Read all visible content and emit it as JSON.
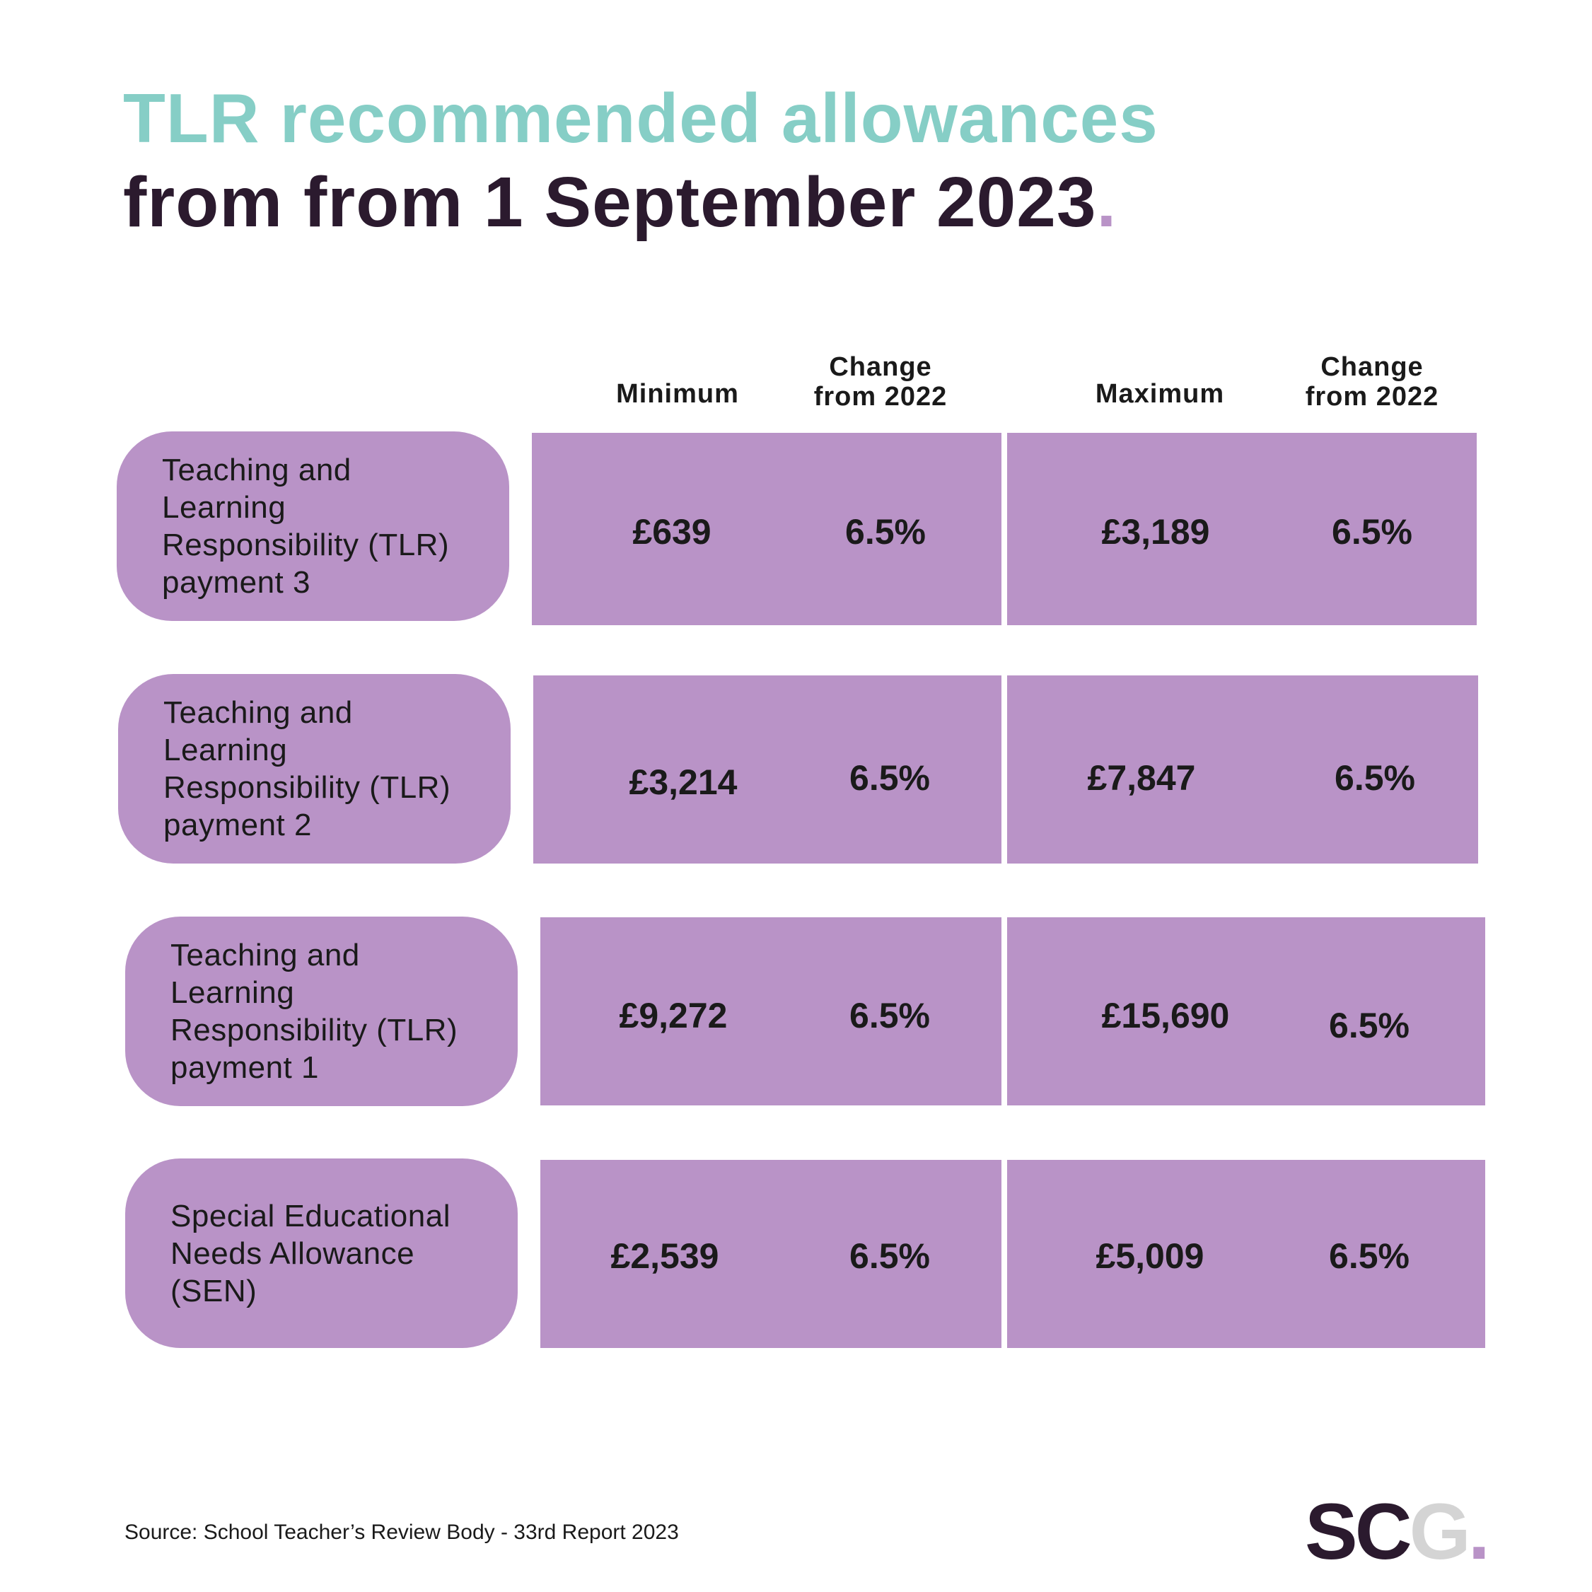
{
  "title": {
    "line1": "TLR recommended allowances",
    "line2": "from from 1 September 2023",
    "dot": "."
  },
  "columns": {
    "minimum": "Minimum",
    "change_min": [
      "Change",
      "from 2022"
    ],
    "maximum": "Maximum",
    "change_max": [
      "Change",
      "from 2022"
    ]
  },
  "rows": [
    {
      "label": [
        "Teaching and",
        "Learning",
        "Responsibility (TLR)",
        "payment 3"
      ],
      "minimum": "£639",
      "change_min": "6.5%",
      "maximum": "£3,189",
      "change_max": "6.5%"
    },
    {
      "label": [
        "Teaching and",
        "Learning",
        "Responsibility (TLR)",
        "payment 2"
      ],
      "minimum": "£3,214",
      "change_min": "6.5%",
      "maximum": "£7,847",
      "change_max": "6.5%"
    },
    {
      "label": [
        "Teaching and",
        "Learning",
        "Responsibility (TLR)",
        "payment 1"
      ],
      "minimum": "£9,272",
      "change_min": "6.5%",
      "maximum": "£15,690",
      "change_max": "6.5%"
    },
    {
      "label": [
        "Special Educational",
        "Needs Allowance",
        "(SEN)"
      ],
      "minimum": "£2,539",
      "change_min": "6.5%",
      "maximum": "£5,009",
      "change_max": "6.5%"
    }
  ],
  "source": "Source: School Teacher’s Review Body - 33rd Report 2023",
  "logo": {
    "part1": "SC",
    "part2": "G",
    "part3": "."
  },
  "colors": {
    "accent_teal": "#86cec6",
    "dark": "#2b1a2e",
    "panel_purple": "#b993c7",
    "logo_grey": "#d4d4d4"
  }
}
